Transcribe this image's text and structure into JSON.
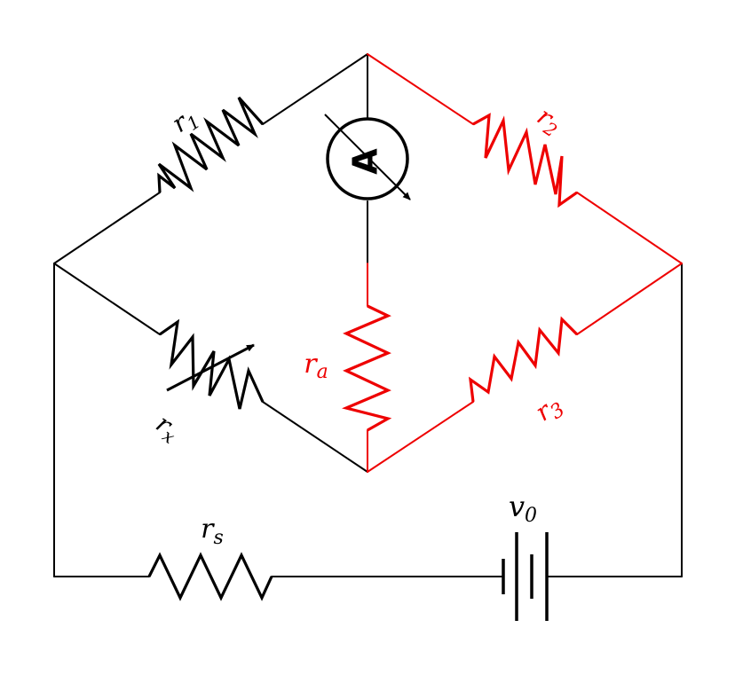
{
  "colors": {
    "black": "#000000",
    "highlight": "#ee0000"
  },
  "labels": {
    "r1": {
      "main": "r",
      "sub": "1"
    },
    "r2": {
      "main": "r",
      "sub": "2"
    },
    "r3": {
      "main": "r",
      "sub": "3"
    },
    "rx": {
      "main": "r",
      "sub": "x"
    },
    "ra": {
      "main": "r",
      "sub": "a"
    },
    "rs": {
      "main": "r",
      "sub": "s"
    },
    "v0": {
      "main": "v",
      "sub": "0"
    },
    "ammeter": "A"
  },
  "icons": {
    "meter": "ammeter-icon",
    "battery": "battery-icon",
    "variable": "variable-resistor-arrow-icon"
  }
}
